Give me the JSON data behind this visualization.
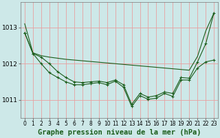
{
  "xlabel": "Graphe pression niveau de la mer (hPa)",
  "bg_color": "#cde8e8",
  "grid_color": "#e8a0a0",
  "line_color": "#1a5c1a",
  "hours": [
    0,
    1,
    2,
    3,
    4,
    5,
    6,
    7,
    8,
    9,
    10,
    11,
    12,
    13,
    14,
    15,
    16,
    17,
    18,
    19,
    20,
    21,
    22,
    23
  ],
  "line_upper": [
    1013.1,
    1012.3,
    1012.22,
    1012.18,
    1012.15,
    1012.12,
    1012.1,
    1012.08,
    1012.06,
    1012.04,
    1012.02,
    1012.0,
    1011.98,
    1011.96,
    1011.94,
    1011.92,
    1011.9,
    1011.88,
    1011.86,
    1011.84,
    1011.82,
    1012.2,
    1012.9,
    1013.4
  ],
  "line_mid": [
    1012.85,
    1012.28,
    1012.18,
    1012.0,
    1011.78,
    1011.62,
    1011.5,
    1011.48,
    1011.5,
    1011.52,
    1011.48,
    1011.55,
    1011.42,
    1010.88,
    1011.18,
    1011.08,
    1011.12,
    1011.22,
    1011.18,
    1011.62,
    1011.6,
    1012.05,
    1012.55,
    1013.4
  ],
  "line_low": [
    1012.85,
    1012.28,
    1012.0,
    1011.75,
    1011.62,
    1011.5,
    1011.42,
    1011.42,
    1011.45,
    1011.48,
    1011.42,
    1011.52,
    1011.35,
    1010.82,
    1011.12,
    1011.02,
    1011.05,
    1011.18,
    1011.1,
    1011.55,
    1011.55,
    1011.88,
    1012.05,
    1012.1
  ],
  "ylim": [
    1010.5,
    1013.7
  ],
  "yticks": [
    1011,
    1012,
    1013
  ],
  "xtick_fontsize": 5.5,
  "ytick_fontsize": 6.5,
  "xlabel_fontsize": 7.5,
  "figwidth": 3.2,
  "figheight": 2.0,
  "dpi": 100
}
